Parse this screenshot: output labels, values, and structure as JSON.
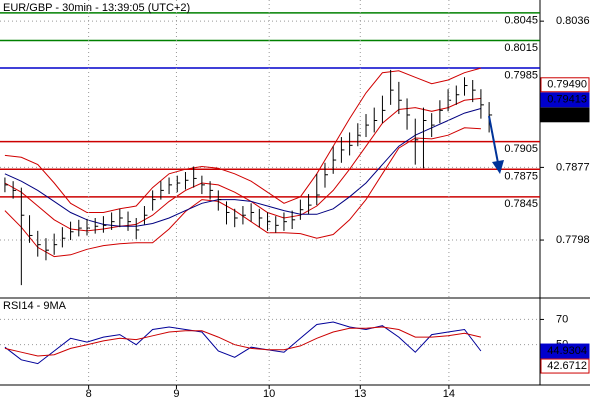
{
  "chart_data": [
    {
      "type": "ohlc",
      "title": "EUR/GBP - 30min - 13:39:05 (UTC+2)",
      "xlim": [
        -0.6,
        65.2
      ],
      "ylim": [
        0.7735,
        0.8059
      ],
      "yticks": [
        0.8036,
        0.7877,
        0.7798
      ],
      "grid": true,
      "bar_color": "#000000",
      "close": [
        0.7858,
        0.7852,
        0.7825,
        0.7803,
        0.7793,
        0.7787,
        0.7793,
        0.78,
        0.7807,
        0.7811,
        0.7811,
        0.7813,
        0.7814,
        0.7818,
        0.7822,
        0.7818,
        0.7809,
        0.7825,
        0.7842,
        0.7852,
        0.7858,
        0.786,
        0.7863,
        0.7865,
        0.7858,
        0.7852,
        0.7842,
        0.7828,
        0.7822,
        0.7825,
        0.7828,
        0.7822,
        0.7818,
        0.7814,
        0.7818,
        0.782,
        0.7831,
        0.7836,
        0.7847,
        0.7869,
        0.7885,
        0.7896,
        0.7901,
        0.7912,
        0.7923,
        0.7928,
        0.7939,
        0.7961,
        0.795,
        0.7934,
        0.7907,
        0.7928,
        0.7923,
        0.7939,
        0.795,
        0.7956,
        0.7966,
        0.7961,
        0.7945,
        0.7934
      ],
      "high": [
        0.7866,
        0.7862,
        0.7855,
        0.7825,
        0.7808,
        0.78,
        0.7805,
        0.7812,
        0.7818,
        0.782,
        0.7821,
        0.7822,
        0.7824,
        0.7828,
        0.7832,
        0.7829,
        0.7822,
        0.7835,
        0.7852,
        0.7862,
        0.7866,
        0.7868,
        0.7872,
        0.7878,
        0.7868,
        0.7862,
        0.7852,
        0.784,
        0.7832,
        0.7835,
        0.7838,
        0.7832,
        0.7828,
        0.7824,
        0.7828,
        0.783,
        0.7842,
        0.7848,
        0.787,
        0.7882,
        0.79,
        0.791,
        0.7915,
        0.7925,
        0.7935,
        0.7942,
        0.7955,
        0.7983,
        0.797,
        0.7952,
        0.793,
        0.7942,
        0.7936,
        0.795,
        0.7962,
        0.7966,
        0.7975,
        0.7972,
        0.7962,
        0.7948
      ],
      "low": [
        0.785,
        0.7843,
        0.7749,
        0.7795,
        0.778,
        0.7776,
        0.7782,
        0.779,
        0.7798,
        0.7802,
        0.7803,
        0.7805,
        0.7806,
        0.7809,
        0.7812,
        0.7808,
        0.7799,
        0.7815,
        0.783,
        0.7842,
        0.7848,
        0.785,
        0.7853,
        0.7855,
        0.7848,
        0.7842,
        0.783,
        0.7815,
        0.7812,
        0.7815,
        0.7818,
        0.7812,
        0.7808,
        0.7806,
        0.7808,
        0.781,
        0.782,
        0.7826,
        0.7836,
        0.7855,
        0.787,
        0.7882,
        0.789,
        0.79,
        0.791,
        0.7915,
        0.7925,
        0.7945,
        0.7935,
        0.7918,
        0.788,
        0.7876,
        0.791,
        0.7925,
        0.7938,
        0.7945,
        0.7955,
        0.7948,
        0.793,
        0.7915
      ],
      "overlays": {
        "x": [
          0,
          2,
          4,
          6,
          8,
          10,
          12,
          14,
          16,
          18,
          20,
          22,
          24,
          26,
          28,
          30,
          32,
          34,
          36,
          38,
          40,
          42,
          44,
          46,
          48,
          50,
          52,
          54,
          56,
          58
        ],
        "series": [
          {
            "color": "#d00000",
            "values": [
              0.789,
              0.7888,
              0.788,
              0.786,
              0.7838,
              0.7828,
              0.7828,
              0.7832,
              0.7835,
              0.7855,
              0.787,
              0.7875,
              0.7878,
              0.7876,
              0.787,
              0.7862,
              0.785,
              0.7838,
              0.7845,
              0.787,
              0.79,
              0.793,
              0.7958,
              0.798,
              0.7982,
              0.7975,
              0.7968,
              0.7972,
              0.798,
              0.7985
            ]
          },
          {
            "color": "#d00000",
            "values": [
              0.786,
              0.785,
              0.7835,
              0.782,
              0.781,
              0.7808,
              0.781,
              0.7813,
              0.7815,
              0.7825,
              0.784,
              0.7852,
              0.786,
              0.7858,
              0.785,
              0.784,
              0.7828,
              0.7822,
              0.7825,
              0.7835,
              0.7852,
              0.7875,
              0.79,
              0.7925,
              0.794,
              0.7942,
              0.7938,
              0.7942,
              0.795,
              0.7952
            ]
          },
          {
            "color": "#d00000",
            "values": [
              0.783,
              0.7812,
              0.779,
              0.778,
              0.7782,
              0.7788,
              0.7792,
              0.7794,
              0.7795,
              0.7795,
              0.781,
              0.7829,
              0.7842,
              0.784,
              0.783,
              0.7818,
              0.7806,
              0.7806,
              0.7805,
              0.78,
              0.7804,
              0.782,
              0.7842,
              0.787,
              0.7898,
              0.7909,
              0.7908,
              0.7912,
              0.792,
              0.7919
            ]
          },
          {
            "color": "#000080",
            "values": [
              0.787,
              0.7862,
              0.7852,
              0.784,
              0.7828,
              0.782,
              0.7815,
              0.7813,
              0.7813,
              0.7816,
              0.7822,
              0.783,
              0.7838,
              0.7842,
              0.7842,
              0.784,
              0.7835,
              0.783,
              0.7826,
              0.7826,
              0.7832,
              0.7845,
              0.786,
              0.788,
              0.79,
              0.7912,
              0.792,
              0.7928,
              0.7936,
              0.7941
            ]
          }
        ]
      },
      "levels": [
        {
          "value": 0.8045,
          "color": "#008000"
        },
        {
          "value": 0.8015,
          "color": "#008000"
        },
        {
          "value": 0.7985,
          "color": "#0000cc"
        },
        {
          "value": 0.7905,
          "color": "#cc0000"
        },
        {
          "value": 0.7875,
          "color": "#cc0000"
        },
        {
          "value": 0.7845,
          "color": "#cc0000"
        }
      ],
      "tags": [
        {
          "value": 0.7949,
          "label": "0.79490",
          "bg": "#ffffff",
          "fg": "#cc0000"
        },
        {
          "value": 0.79413,
          "bg": "#0000cc",
          "fg": "#ffffff"
        },
        {
          "value": 0.79342,
          "bg": "#000000",
          "fg": "#ffffff"
        }
      ]
    },
    {
      "type": "line",
      "title": "RSI14 - 9MA",
      "xlim": [
        -0.6,
        65.2
      ],
      "ylim": [
        18,
        87
      ],
      "yticks": [
        70,
        50
      ],
      "grid": true,
      "xticks": [
        {
          "value": 10.2,
          "label": "8"
        },
        {
          "value": 20.9,
          "label": "9"
        },
        {
          "value": 32.2,
          "label": "10"
        },
        {
          "value": 43.3,
          "label": "13"
        },
        {
          "value": 54.1,
          "label": "14"
        }
      ],
      "x": [
        0,
        2,
        4,
        6,
        8,
        10,
        12,
        14,
        16,
        18,
        20,
        22,
        24,
        26,
        28,
        30,
        32,
        34,
        36,
        38,
        40,
        42,
        44,
        46,
        48,
        50,
        52,
        54,
        56,
        58
      ],
      "series": [
        {
          "color": "#000099",
          "values": [
            48,
            38,
            35,
            45,
            55,
            52,
            56,
            58,
            50,
            62,
            64,
            62,
            60,
            45,
            40,
            48,
            46,
            44,
            55,
            66,
            68,
            64,
            62,
            65,
            56,
            44,
            58,
            60,
            62,
            45
          ]
        },
        {
          "color": "#cc0000",
          "values": [
            47,
            44,
            41,
            42,
            47,
            50,
            53,
            55,
            54,
            57,
            60,
            61,
            61,
            56,
            50,
            47,
            46,
            46,
            49,
            55,
            60,
            63,
            63,
            64,
            62,
            56,
            56,
            57,
            59,
            56
          ]
        }
      ],
      "tags": [
        {
          "value": 44.9304,
          "bg": "#0000cc",
          "fg": "#ffffff"
        },
        {
          "value": 42.6712,
          "bg": "#ffffff",
          "fg": "#cc0000"
        }
      ]
    }
  ]
}
